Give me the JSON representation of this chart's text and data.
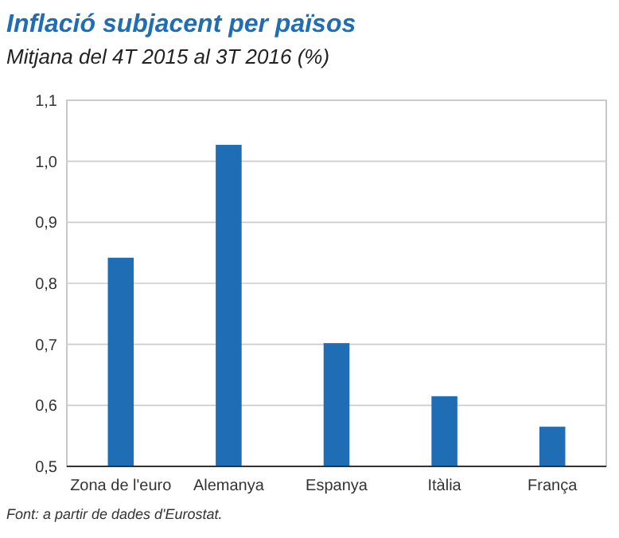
{
  "chart_data": {
    "type": "bar",
    "title": "Inflació subjacent per països",
    "subtitle": "Mitjana del 4T 2015 al 3T 2016 (%)",
    "categories": [
      "Zona de l'euro",
      "Alemanya",
      "Espanya",
      "Itàlia",
      "França"
    ],
    "values": [
      0.842,
      1.027,
      0.702,
      0.615,
      0.565
    ],
    "color": "#1f6db5",
    "ylim": [
      0.5,
      1.1
    ],
    "yticks": [
      {
        "value": 0.5,
        "label": "0,5"
      },
      {
        "value": 0.6,
        "label": "0,6"
      },
      {
        "value": 0.7,
        "label": "0,7"
      },
      {
        "value": 0.8,
        "label": "0,8"
      },
      {
        "value": 0.9,
        "label": "0,9"
      },
      {
        "value": 1.0,
        "label": "1,0"
      },
      {
        "value": 1.1,
        "label": "1,1"
      }
    ],
    "grid": "y",
    "annotations": [
      "Font: a partir de dades d'Eurostat."
    ]
  }
}
